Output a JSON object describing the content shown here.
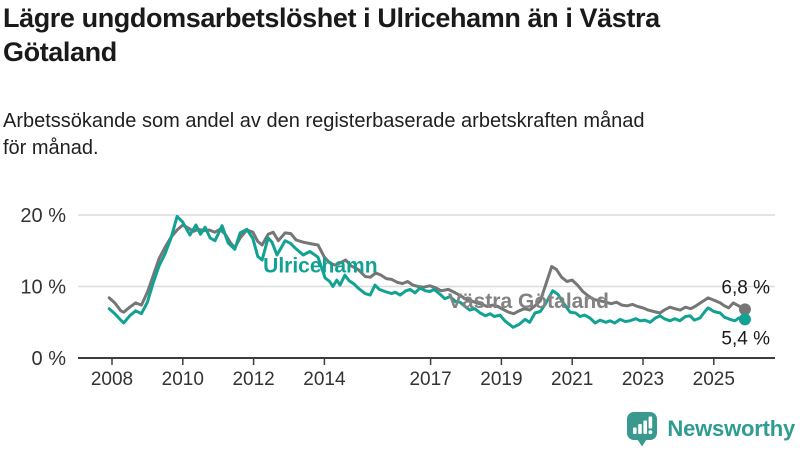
{
  "header": {
    "title": "Lägre ungdomsarbetslöshet i Ulricehamn än i Västra Götaland",
    "subtitle": "Arbetssökande som andel av den registerbaserade arbetskraften månad för månad."
  },
  "chart_data": {
    "type": "line",
    "title": "Lägre ungdomsarbetslöshet i Ulricehamn än i Västra Götaland",
    "subtitle": "Arbetssökande som andel av den registerbaserade arbetskraften månad för månad.",
    "unit": "%",
    "grid": "horizontal-only",
    "legend_position": "inline-labels-on-lines",
    "x_axis": {
      "range": [
        2007.9,
        2026.1
      ],
      "tick_years": [
        2008,
        2010,
        2012,
        2014,
        2017,
        2019,
        2021,
        2023,
        2025
      ]
    },
    "y_axis": {
      "range": [
        0,
        21.5
      ],
      "ticks": [
        {
          "value": 0,
          "label": "0 %"
        },
        {
          "value": 10,
          "label": "10 %"
        },
        {
          "value": 20,
          "label": "20 %"
        }
      ],
      "gridline_values": [
        10,
        20
      ]
    },
    "colors": {
      "ulricehamn": "#12a294",
      "vastra_gotaland": "#767676",
      "vastra_gotaland_label": "#828282",
      "gridline": "#dcdcdc",
      "axis": "#3d3d3d",
      "tick_text": "#333333",
      "end_value_text": "#1a1a1a"
    },
    "series": [
      {
        "name": "Västra Götaland",
        "color_key": "vastra_gotaland",
        "label_anchor": {
          "x": 2017.49,
          "y_pct": 8.1
        },
        "end_value": 6.8,
        "end_label": "6,8 %",
        "end_label_side": "above",
        "points": [
          [
            2007.92,
            8.4
          ],
          [
            2008.08,
            7.7
          ],
          [
            2008.25,
            6.6
          ],
          [
            2008.33,
            6.4
          ],
          [
            2008.5,
            7.1
          ],
          [
            2008.67,
            7.7
          ],
          [
            2008.83,
            7.4
          ],
          [
            2009.0,
            9.2
          ],
          [
            2009.17,
            11.6
          ],
          [
            2009.33,
            13.9
          ],
          [
            2009.5,
            15.5
          ],
          [
            2009.67,
            16.9
          ],
          [
            2009.84,
            17.9
          ],
          [
            2010.0,
            18.6
          ],
          [
            2010.15,
            18.2
          ],
          [
            2010.3,
            17.7
          ],
          [
            2010.45,
            18.0
          ],
          [
            2010.6,
            17.8
          ],
          [
            2010.75,
            17.9
          ],
          [
            2010.9,
            17.6
          ],
          [
            2011.05,
            18.0
          ],
          [
            2011.2,
            17.3
          ],
          [
            2011.35,
            16.1
          ],
          [
            2011.47,
            15.4
          ],
          [
            2011.62,
            16.8
          ],
          [
            2011.81,
            17.9
          ],
          [
            2011.98,
            17.6
          ],
          [
            2012.12,
            16.3
          ],
          [
            2012.24,
            15.8
          ],
          [
            2012.41,
            17.3
          ],
          [
            2012.55,
            17.6
          ],
          [
            2012.7,
            16.4
          ],
          [
            2012.89,
            17.5
          ],
          [
            2013.05,
            17.4
          ],
          [
            2013.2,
            16.5
          ],
          [
            2013.4,
            16.2
          ],
          [
            2013.6,
            16.0
          ],
          [
            2013.82,
            15.8
          ],
          [
            2014.0,
            14.1
          ],
          [
            2014.15,
            13.3
          ],
          [
            2014.3,
            13.0
          ],
          [
            2014.45,
            13.3
          ],
          [
            2014.6,
            13.7
          ],
          [
            2014.75,
            12.9
          ],
          [
            2014.95,
            12.4
          ],
          [
            2015.15,
            11.4
          ],
          [
            2015.3,
            11.3
          ],
          [
            2015.45,
            11.9
          ],
          [
            2015.6,
            11.6
          ],
          [
            2015.75,
            11.1
          ],
          [
            2015.9,
            11.0
          ],
          [
            2016.05,
            10.6
          ],
          [
            2016.2,
            10.4
          ],
          [
            2016.35,
            10.7
          ],
          [
            2016.5,
            10.2
          ],
          [
            2016.65,
            10.0
          ],
          [
            2016.8,
            9.9
          ],
          [
            2016.98,
            10.1
          ],
          [
            2017.15,
            9.8
          ],
          [
            2017.3,
            9.4
          ],
          [
            2017.5,
            9.6
          ],
          [
            2017.7,
            9.1
          ],
          [
            2017.85,
            8.7
          ],
          [
            2018.0,
            8.2
          ],
          [
            2018.15,
            8.0
          ],
          [
            2018.3,
            7.7
          ],
          [
            2018.45,
            7.5
          ],
          [
            2018.6,
            7.2
          ],
          [
            2018.75,
            7.4
          ],
          [
            2018.9,
            7.2
          ],
          [
            2019.05,
            6.8
          ],
          [
            2019.2,
            6.4
          ],
          [
            2019.35,
            6.2
          ],
          [
            2019.5,
            6.6
          ],
          [
            2019.65,
            6.9
          ],
          [
            2019.8,
            6.7
          ],
          [
            2019.95,
            7.3
          ],
          [
            2020.1,
            8.0
          ],
          [
            2020.25,
            10.2
          ],
          [
            2020.42,
            12.8
          ],
          [
            2020.55,
            12.4
          ],
          [
            2020.7,
            11.3
          ],
          [
            2020.85,
            10.7
          ],
          [
            2021.0,
            10.9
          ],
          [
            2021.15,
            10.2
          ],
          [
            2021.3,
            9.3
          ],
          [
            2021.45,
            8.7
          ],
          [
            2021.6,
            8.2
          ],
          [
            2021.79,
            8.0
          ],
          [
            2021.95,
            7.8
          ],
          [
            2022.1,
            7.6
          ],
          [
            2022.25,
            7.8
          ],
          [
            2022.4,
            7.4
          ],
          [
            2022.55,
            7.3
          ],
          [
            2022.7,
            7.5
          ],
          [
            2022.85,
            7.2
          ],
          [
            2023.0,
            7.0
          ],
          [
            2023.15,
            6.7
          ],
          [
            2023.3,
            6.5
          ],
          [
            2023.48,
            6.3
          ],
          [
            2023.6,
            6.7
          ],
          [
            2023.76,
            7.1
          ],
          [
            2023.9,
            6.9
          ],
          [
            2024.05,
            6.7
          ],
          [
            2024.2,
            7.1
          ],
          [
            2024.35,
            6.9
          ],
          [
            2024.5,
            7.3
          ],
          [
            2024.65,
            7.8
          ],
          [
            2024.84,
            8.4
          ],
          [
            2025.0,
            8.1
          ],
          [
            2025.18,
            7.7
          ],
          [
            2025.3,
            7.3
          ],
          [
            2025.42,
            7.0
          ],
          [
            2025.55,
            7.7
          ],
          [
            2025.7,
            7.3
          ],
          [
            2025.88,
            6.8
          ]
        ]
      },
      {
        "name": "Ulricehamn",
        "color_key": "ulricehamn",
        "label_anchor": {
          "x": 2012.27,
          "y_pct": 13.1
        },
        "end_value": 5.4,
        "end_label": "5,4 %",
        "end_label_side": "below",
        "points": [
          [
            2007.92,
            6.9
          ],
          [
            2008.08,
            6.2
          ],
          [
            2008.25,
            5.3
          ],
          [
            2008.33,
            4.9
          ],
          [
            2008.5,
            5.9
          ],
          [
            2008.67,
            6.6
          ],
          [
            2008.83,
            6.2
          ],
          [
            2009.0,
            7.8
          ],
          [
            2009.17,
            10.6
          ],
          [
            2009.33,
            12.9
          ],
          [
            2009.5,
            14.6
          ],
          [
            2009.67,
            16.8
          ],
          [
            2009.84,
            19.8
          ],
          [
            2010.0,
            19.0
          ],
          [
            2010.2,
            17.2
          ],
          [
            2010.37,
            18.6
          ],
          [
            2010.5,
            17.3
          ],
          [
            2010.63,
            18.3
          ],
          [
            2010.77,
            16.8
          ],
          [
            2010.91,
            16.4
          ],
          [
            2011.11,
            18.5
          ],
          [
            2011.28,
            16.1
          ],
          [
            2011.47,
            15.2
          ],
          [
            2011.62,
            17.5
          ],
          [
            2011.81,
            18.0
          ],
          [
            2011.98,
            16.7
          ],
          [
            2012.12,
            14.2
          ],
          [
            2012.24,
            13.7
          ],
          [
            2012.41,
            16.8
          ],
          [
            2012.52,
            16.2
          ],
          [
            2012.66,
            14.4
          ],
          [
            2012.8,
            15.6
          ],
          [
            2012.89,
            16.4
          ],
          [
            2013.05,
            16.0
          ],
          [
            2013.17,
            15.4
          ],
          [
            2013.4,
            14.4
          ],
          [
            2013.59,
            14.9
          ],
          [
            2013.82,
            14.1
          ],
          [
            2014.02,
            11.2
          ],
          [
            2014.15,
            10.7
          ],
          [
            2014.24,
            10.0
          ],
          [
            2014.35,
            10.9
          ],
          [
            2014.44,
            10.2
          ],
          [
            2014.58,
            11.6
          ],
          [
            2014.7,
            10.8
          ],
          [
            2014.85,
            10.3
          ],
          [
            2014.95,
            9.8
          ],
          [
            2015.15,
            9.0
          ],
          [
            2015.29,
            8.8
          ],
          [
            2015.43,
            10.2
          ],
          [
            2015.55,
            9.6
          ],
          [
            2015.71,
            9.3
          ],
          [
            2015.9,
            9.0
          ],
          [
            2016.0,
            9.2
          ],
          [
            2016.14,
            8.8
          ],
          [
            2016.3,
            9.4
          ],
          [
            2016.42,
            9.6
          ],
          [
            2016.56,
            9.1
          ],
          [
            2016.7,
            9.8
          ],
          [
            2016.85,
            9.4
          ],
          [
            2016.98,
            9.3
          ],
          [
            2017.1,
            9.6
          ],
          [
            2017.27,
            8.9
          ],
          [
            2017.4,
            8.3
          ],
          [
            2017.55,
            8.6
          ],
          [
            2017.7,
            7.9
          ],
          [
            2017.83,
            7.8
          ],
          [
            2018.0,
            7.1
          ],
          [
            2018.11,
            6.7
          ],
          [
            2018.25,
            6.9
          ],
          [
            2018.4,
            6.3
          ],
          [
            2018.55,
            5.9
          ],
          [
            2018.68,
            6.2
          ],
          [
            2018.8,
            5.8
          ],
          [
            2018.96,
            6.0
          ],
          [
            2019.1,
            5.2
          ],
          [
            2019.33,
            4.3
          ],
          [
            2019.5,
            4.7
          ],
          [
            2019.67,
            5.4
          ],
          [
            2019.8,
            5.0
          ],
          [
            2019.95,
            6.3
          ],
          [
            2020.1,
            6.5
          ],
          [
            2020.25,
            7.6
          ],
          [
            2020.45,
            9.4
          ],
          [
            2020.6,
            8.9
          ],
          [
            2020.75,
            7.7
          ],
          [
            2020.94,
            6.4
          ],
          [
            2021.1,
            6.3
          ],
          [
            2021.22,
            5.8
          ],
          [
            2021.35,
            6.0
          ],
          [
            2021.5,
            5.6
          ],
          [
            2021.65,
            4.9
          ],
          [
            2021.79,
            5.3
          ],
          [
            2021.95,
            5.0
          ],
          [
            2022.07,
            5.2
          ],
          [
            2022.2,
            4.9
          ],
          [
            2022.35,
            5.4
          ],
          [
            2022.5,
            5.1
          ],
          [
            2022.63,
            5.2
          ],
          [
            2022.8,
            5.5
          ],
          [
            2022.92,
            5.2
          ],
          [
            2023.05,
            5.3
          ],
          [
            2023.2,
            5.0
          ],
          [
            2023.35,
            5.6
          ],
          [
            2023.48,
            5.9
          ],
          [
            2023.6,
            5.5
          ],
          [
            2023.76,
            5.2
          ],
          [
            2023.9,
            5.5
          ],
          [
            2024.04,
            5.2
          ],
          [
            2024.2,
            5.8
          ],
          [
            2024.33,
            5.9
          ],
          [
            2024.45,
            5.3
          ],
          [
            2024.61,
            5.6
          ],
          [
            2024.75,
            6.5
          ],
          [
            2024.84,
            7.0
          ],
          [
            2025.0,
            6.5
          ],
          [
            2025.18,
            6.3
          ],
          [
            2025.3,
            5.7
          ],
          [
            2025.46,
            5.4
          ],
          [
            2025.6,
            5.2
          ],
          [
            2025.7,
            5.6
          ],
          [
            2025.88,
            5.4
          ]
        ]
      }
    ]
  },
  "footer": {
    "brand": "Newsworthy",
    "brand_color": "#2f9c92",
    "logo_mark_color": "#3a998e",
    "logo_icon": "bar-chart-speech-bubble-icon"
  }
}
